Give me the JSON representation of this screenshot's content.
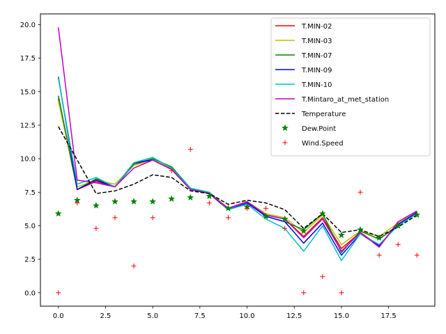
{
  "chart_data": {
    "type": "line",
    "x": [
      0,
      1,
      2,
      3,
      4,
      5,
      6,
      7,
      8,
      9,
      10,
      11,
      12,
      13,
      14,
      15,
      16,
      17,
      18,
      19
    ],
    "xlim": [
      -0.95,
      19.95
    ],
    "ylim": [
      -1.0,
      20.8
    ],
    "xticks": [
      0.0,
      2.5,
      5.0,
      7.5,
      10.0,
      12.5,
      15.0,
      17.5
    ],
    "xtick_labels": [
      "0.0",
      "2.5",
      "5.0",
      "7.5",
      "10.0",
      "12.5",
      "15.0",
      "17.5"
    ],
    "yticks": [
      0.0,
      2.5,
      5.0,
      7.5,
      10.0,
      12.5,
      15.0,
      17.5,
      20.0
    ],
    "ytick_labels": [
      "0.0",
      "2.5",
      "5.0",
      "7.5",
      "10.0",
      "12.5",
      "15.0",
      "17.5",
      "20.0"
    ],
    "grid": false,
    "legend_position": "top-right",
    "series": [
      {
        "name": "T.MIN-02",
        "style": "line",
        "color": "#ff0000",
        "values": [
          14.5,
          7.7,
          8.3,
          7.9,
          9.6,
          9.9,
          9.2,
          7.7,
          7.4,
          6.2,
          6.7,
          5.8,
          5.5,
          4.2,
          5.6,
          3.3,
          4.5,
          3.5,
          5.1,
          6.0
        ]
      },
      {
        "name": "T.MIN-03",
        "style": "line",
        "color": "#bfbf00",
        "values": [
          14.3,
          7.9,
          8.4,
          8.1,
          9.5,
          9.9,
          9.3,
          7.8,
          7.5,
          6.3,
          6.8,
          5.9,
          5.6,
          4.5,
          5.8,
          3.6,
          4.6,
          4.2,
          5.2,
          6.1
        ]
      },
      {
        "name": "T.MIN-07",
        "style": "line",
        "color": "#008000",
        "values": [
          14.7,
          7.7,
          8.5,
          7.9,
          9.6,
          10.0,
          9.4,
          7.8,
          7.4,
          6.3,
          6.8,
          5.7,
          5.3,
          4.7,
          5.9,
          3.0,
          4.6,
          4.0,
          5.0,
          5.9
        ]
      },
      {
        "name": "T.MIN-09",
        "style": "line",
        "color": "#0000ff",
        "values": [
          16.1,
          7.7,
          8.4,
          7.9,
          9.7,
          9.9,
          9.2,
          7.7,
          7.4,
          6.2,
          6.7,
          5.7,
          5.3,
          3.7,
          5.2,
          2.8,
          4.4,
          3.5,
          5.1,
          6.0
        ]
      },
      {
        "name": "T.MIN-10",
        "style": "line",
        "color": "#00bfbf",
        "values": [
          16.0,
          8.1,
          8.6,
          7.9,
          9.7,
          10.1,
          9.3,
          7.8,
          7.5,
          6.2,
          6.6,
          5.5,
          4.8,
          3.1,
          5.0,
          2.4,
          4.4,
          3.6,
          5.0,
          5.9
        ]
      },
      {
        "name": "T.Mintaro_at_met_station",
        "style": "line",
        "color": "#bf00bf",
        "values": [
          19.8,
          8.4,
          8.2,
          7.9,
          9.3,
          9.9,
          9.2,
          7.7,
          7.4,
          6.3,
          6.8,
          5.8,
          5.5,
          4.1,
          5.5,
          3.1,
          4.5,
          3.4,
          5.3,
          6.1
        ]
      },
      {
        "name": "Temperature",
        "style": "dashed",
        "color": "#000000",
        "values": [
          12.4,
          9.9,
          7.4,
          7.6,
          8.1,
          8.8,
          8.6,
          7.6,
          7.4,
          6.6,
          6.9,
          6.7,
          6.2,
          4.8,
          5.9,
          4.5,
          4.7,
          4.2,
          4.9,
          5.8
        ]
      },
      {
        "name": "Dew.Point",
        "style": "star",
        "color": "#008000",
        "values": [
          5.9,
          6.9,
          6.5,
          6.8,
          6.8,
          6.8,
          7.0,
          7.1,
          7.2,
          6.3,
          6.4,
          5.7,
          5.5,
          4.6,
          5.9,
          4.3,
          4.7,
          4.1,
          5.0,
          5.8
        ]
      },
      {
        "name": "Wind.Speed",
        "style": "plus",
        "color": "#ff0000",
        "values": [
          0.0,
          6.7,
          4.8,
          5.6,
          2.0,
          5.6,
          9.1,
          10.7,
          6.7,
          5.6,
          6.3,
          6.3,
          4.8,
          0.0,
          1.2,
          0.0,
          7.5,
          2.8,
          3.6,
          2.8
        ]
      }
    ]
  }
}
